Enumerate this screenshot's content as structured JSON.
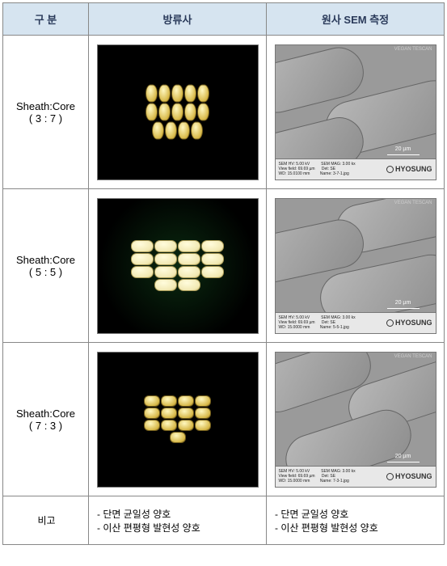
{
  "headers": {
    "col1": "구 분",
    "col2": "방류사",
    "col3": "원사 SEM 측정"
  },
  "rows": [
    {
      "label_title": "Sheath:Core",
      "label_ratio": "( 3 : 7 )"
    },
    {
      "label_title": "Sheath:Core",
      "label_ratio": "( 5 : 5 )",
      "greenish": true
    },
    {
      "label_title": "Sheath:Core",
      "label_ratio": "( 7 : 3 )"
    }
  ],
  "notes": {
    "label": "비고",
    "col2_line1": "- 단면 균일성 양호",
    "col2_line2": "- 이산 편평형 발현성 양호",
    "col3_line1": "- 단면 균일성 양호",
    "col3_line2": "- 이산 편평형 발현성 양호"
  },
  "sem_info": {
    "corner": "VEGAN TESCAN",
    "left1": "SEM HV: 5.00 kV          SEM MAG: 3.00 kx",
    "left2_a": "View field: 69.69 µm      Det: SE",
    "left3a": "WD: 15.0100 mm         Name: 3-7-1.jpg",
    "left3b": "WD: 15.0000 mm         Name: 5-5-1.jpg",
    "left3c": "WD: 15.0000 mm         Name: 7-3-1.jpg",
    "logo": "HYOSUNG",
    "scale": "20 µm"
  },
  "grain_counts": {
    "c37": 14,
    "c55": 14,
    "c73": 13
  }
}
